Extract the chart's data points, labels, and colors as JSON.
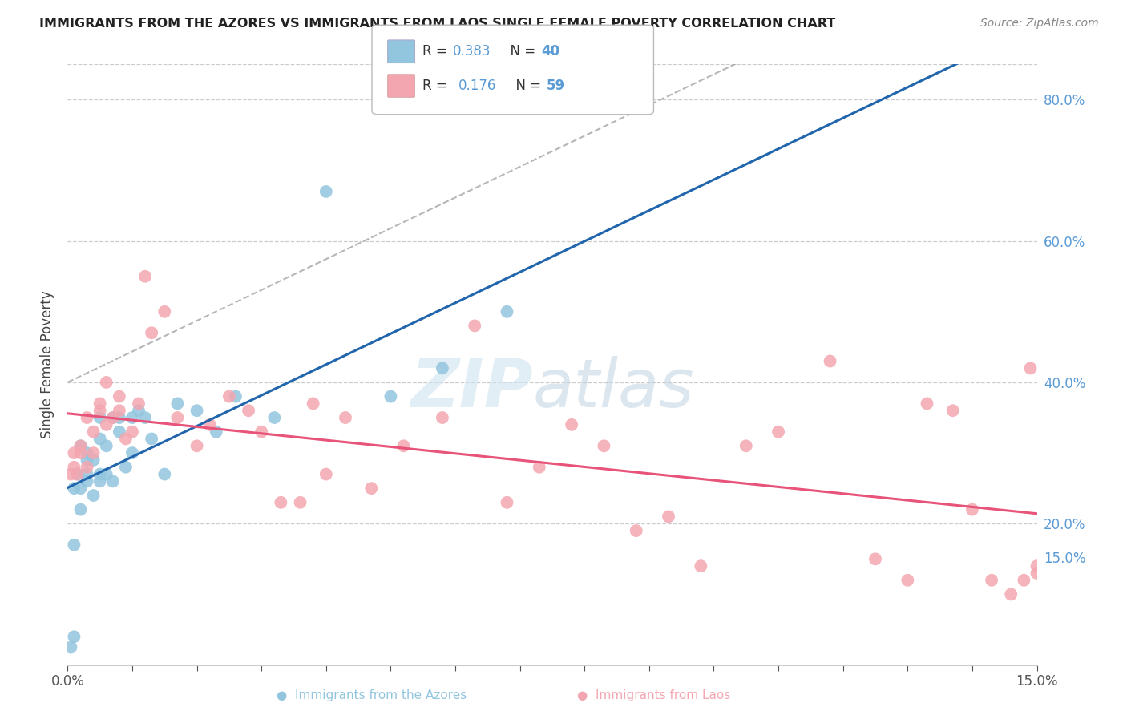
{
  "title": "IMMIGRANTS FROM THE AZORES VS IMMIGRANTS FROM LAOS SINGLE FEMALE POVERTY CORRELATION CHART",
  "source": "Source: ZipAtlas.com",
  "ylabel": "Single Female Poverty",
  "xlim": [
    0.0,
    0.15
  ],
  "ylim": [
    0.0,
    0.85
  ],
  "color_azores": "#92c5de",
  "color_laos": "#f4a6b0",
  "color_line_azores": "#2166ac",
  "color_line_laos": "#e8537a",
  "color_dashed": "#92c5de",
  "azores_x": [
    0.0005,
    0.001,
    0.001,
    0.001,
    0.0015,
    0.002,
    0.002,
    0.002,
    0.003,
    0.003,
    0.003,
    0.003,
    0.004,
    0.004,
    0.005,
    0.005,
    0.005,
    0.005,
    0.006,
    0.006,
    0.007,
    0.007,
    0.008,
    0.008,
    0.009,
    0.01,
    0.01,
    0.011,
    0.012,
    0.013,
    0.015,
    0.017,
    0.02,
    0.023,
    0.026,
    0.032,
    0.04,
    0.05,
    0.058,
    0.068
  ],
  "azores_y": [
    0.025,
    0.04,
    0.17,
    0.25,
    0.27,
    0.22,
    0.25,
    0.31,
    0.26,
    0.27,
    0.29,
    0.3,
    0.24,
    0.29,
    0.26,
    0.27,
    0.32,
    0.35,
    0.27,
    0.31,
    0.26,
    0.35,
    0.33,
    0.35,
    0.28,
    0.3,
    0.35,
    0.36,
    0.35,
    0.32,
    0.27,
    0.37,
    0.36,
    0.33,
    0.38,
    0.35,
    0.67,
    0.38,
    0.42,
    0.5
  ],
  "laos_x": [
    0.0005,
    0.001,
    0.001,
    0.0015,
    0.002,
    0.002,
    0.003,
    0.003,
    0.004,
    0.004,
    0.005,
    0.005,
    0.006,
    0.006,
    0.007,
    0.008,
    0.008,
    0.009,
    0.01,
    0.011,
    0.012,
    0.013,
    0.015,
    0.017,
    0.02,
    0.022,
    0.025,
    0.028,
    0.03,
    0.033,
    0.036,
    0.038,
    0.04,
    0.043,
    0.047,
    0.052,
    0.058,
    0.063,
    0.068,
    0.073,
    0.078,
    0.083,
    0.088,
    0.093,
    0.098,
    0.105,
    0.11,
    0.118,
    0.125,
    0.13,
    0.133,
    0.137,
    0.14,
    0.143,
    0.146,
    0.148,
    0.149,
    0.15,
    0.15
  ],
  "laos_y": [
    0.27,
    0.28,
    0.3,
    0.27,
    0.3,
    0.31,
    0.28,
    0.35,
    0.3,
    0.33,
    0.36,
    0.37,
    0.34,
    0.4,
    0.35,
    0.36,
    0.38,
    0.32,
    0.33,
    0.37,
    0.55,
    0.47,
    0.5,
    0.35,
    0.31,
    0.34,
    0.38,
    0.36,
    0.33,
    0.23,
    0.23,
    0.37,
    0.27,
    0.35,
    0.25,
    0.31,
    0.35,
    0.48,
    0.23,
    0.28,
    0.34,
    0.31,
    0.19,
    0.21,
    0.14,
    0.31,
    0.33,
    0.43,
    0.15,
    0.12,
    0.37,
    0.36,
    0.22,
    0.12,
    0.1,
    0.12,
    0.42,
    0.14,
    0.13
  ]
}
